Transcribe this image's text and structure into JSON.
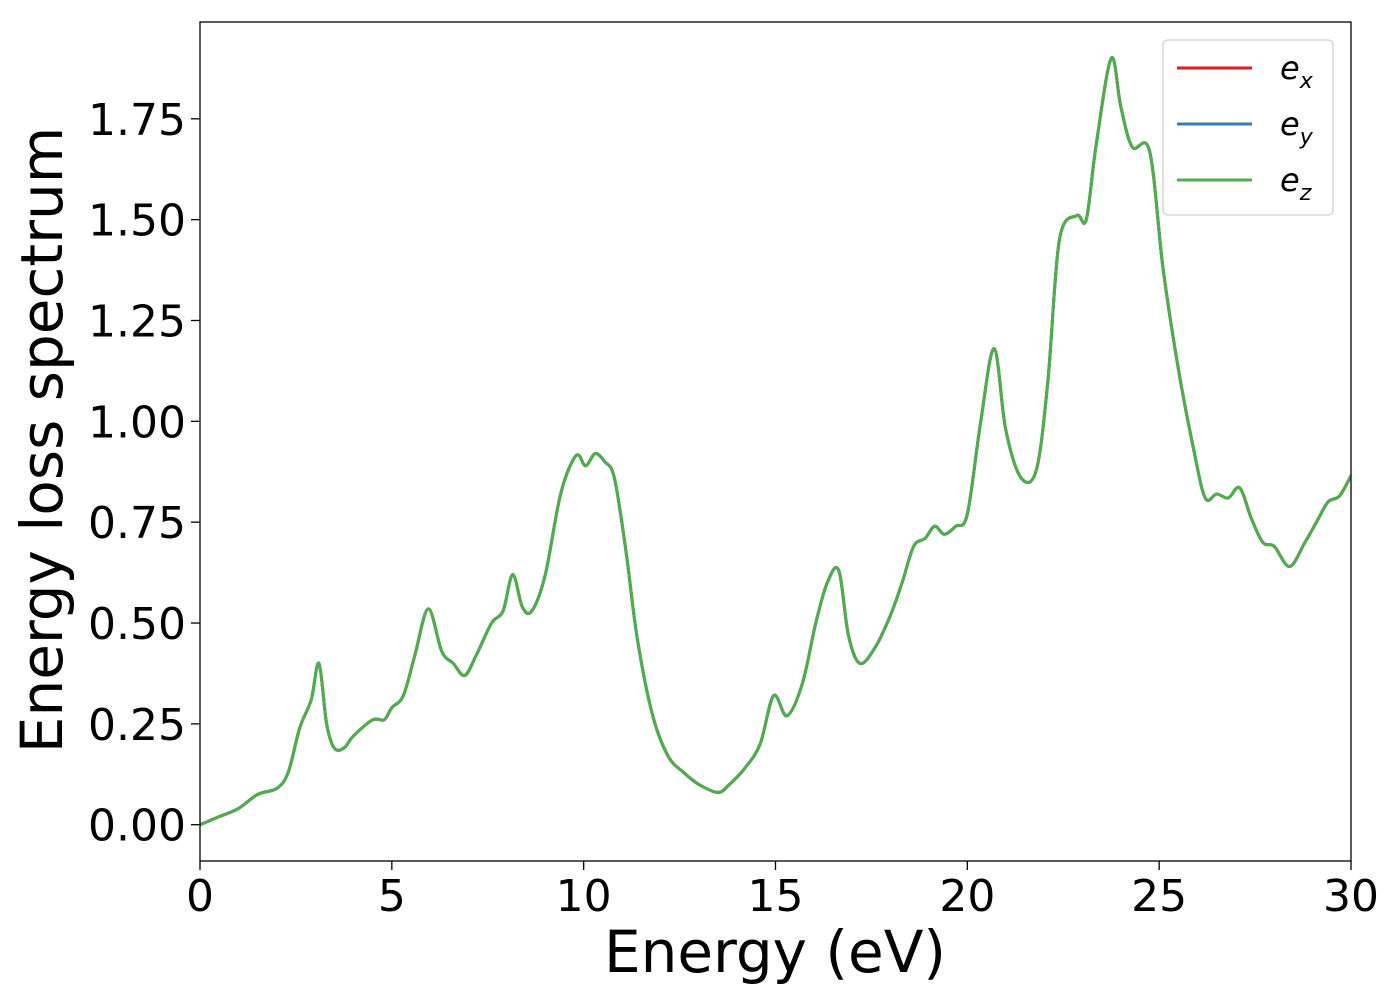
{
  "chart_data": {
    "type": "line",
    "title": "",
    "xlabel": "Energy (eV)",
    "ylabel": "Energy loss spectrum",
    "xlim": [
      0,
      30
    ],
    "ylim": [
      -0.09,
      1.99
    ],
    "x_ticks": [
      "0",
      "5",
      "10",
      "15",
      "20",
      "25",
      "30"
    ],
    "y_ticks": [
      "0.00",
      "0.25",
      "0.50",
      "0.75",
      "1.00",
      "1.25",
      "1.50",
      "1.75"
    ],
    "grid": false,
    "legend_position": "top-right",
    "colors": {
      "e_x": "#e41a1c",
      "e_y": "#377eb8",
      "e_z": "#4daf4a"
    },
    "series": [
      {
        "name": "e_x",
        "label_base": "e",
        "label_sub": "x"
      },
      {
        "name": "e_y",
        "label_base": "e",
        "label_sub": "y"
      },
      {
        "name": "e_z",
        "label_base": "e",
        "label_sub": "z"
      }
    ],
    "x": [
      0,
      0.5,
      1,
      1.5,
      2,
      2.3,
      2.6,
      2.9,
      3.1,
      3.3,
      3.5,
      3.75,
      4,
      4.5,
      4.8,
      5,
      5.3,
      5.6,
      5.95,
      6.3,
      6.6,
      6.9,
      7.2,
      7.6,
      7.9,
      8.15,
      8.4,
      8.65,
      9,
      9.4,
      9.8,
      10.05,
      10.3,
      10.55,
      10.8,
      11.1,
      11.4,
      11.8,
      12.2,
      12.6,
      13,
      13.5,
      13.8,
      14.2,
      14.6,
      14.95,
      15.3,
      15.7,
      16.05,
      16.35,
      16.65,
      16.9,
      17.2,
      17.6,
      18,
      18.3,
      18.6,
      18.9,
      19.15,
      19.4,
      19.7,
      20,
      20.35,
      20.7,
      21,
      21.4,
      21.8,
      22.1,
      22.4,
      22.85,
      23.1,
      23.35,
      23.75,
      24,
      24.3,
      24.75,
      25.1,
      25.5,
      25.9,
      26.2,
      26.5,
      26.8,
      27.1,
      27.4,
      27.7,
      28,
      28.4,
      28.8,
      29.1,
      29.4,
      29.7,
      30
    ],
    "values": [
      0,
      0.02,
      0.04,
      0.075,
      0.09,
      0.13,
      0.24,
      0.31,
      0.4,
      0.25,
      0.19,
      0.19,
      0.22,
      0.26,
      0.26,
      0.29,
      0.32,
      0.42,
      0.535,
      0.43,
      0.4,
      0.37,
      0.42,
      0.5,
      0.53,
      0.62,
      0.54,
      0.53,
      0.62,
      0.82,
      0.915,
      0.89,
      0.92,
      0.9,
      0.86,
      0.68,
      0.46,
      0.27,
      0.17,
      0.13,
      0.1,
      0.08,
      0.1,
      0.14,
      0.2,
      0.32,
      0.27,
      0.35,
      0.5,
      0.6,
      0.63,
      0.47,
      0.4,
      0.44,
      0.52,
      0.6,
      0.69,
      0.71,
      0.74,
      0.72,
      0.74,
      0.77,
      1.0,
      1.18,
      0.98,
      0.86,
      0.88,
      1.1,
      1.45,
      1.51,
      1.5,
      1.68,
      1.9,
      1.78,
      1.68,
      1.67,
      1.38,
      1.13,
      0.93,
      0.81,
      0.82,
      0.81,
      0.835,
      0.76,
      0.7,
      0.69,
      0.64,
      0.7,
      0.75,
      0.8,
      0.815,
      0.865
    ]
  }
}
